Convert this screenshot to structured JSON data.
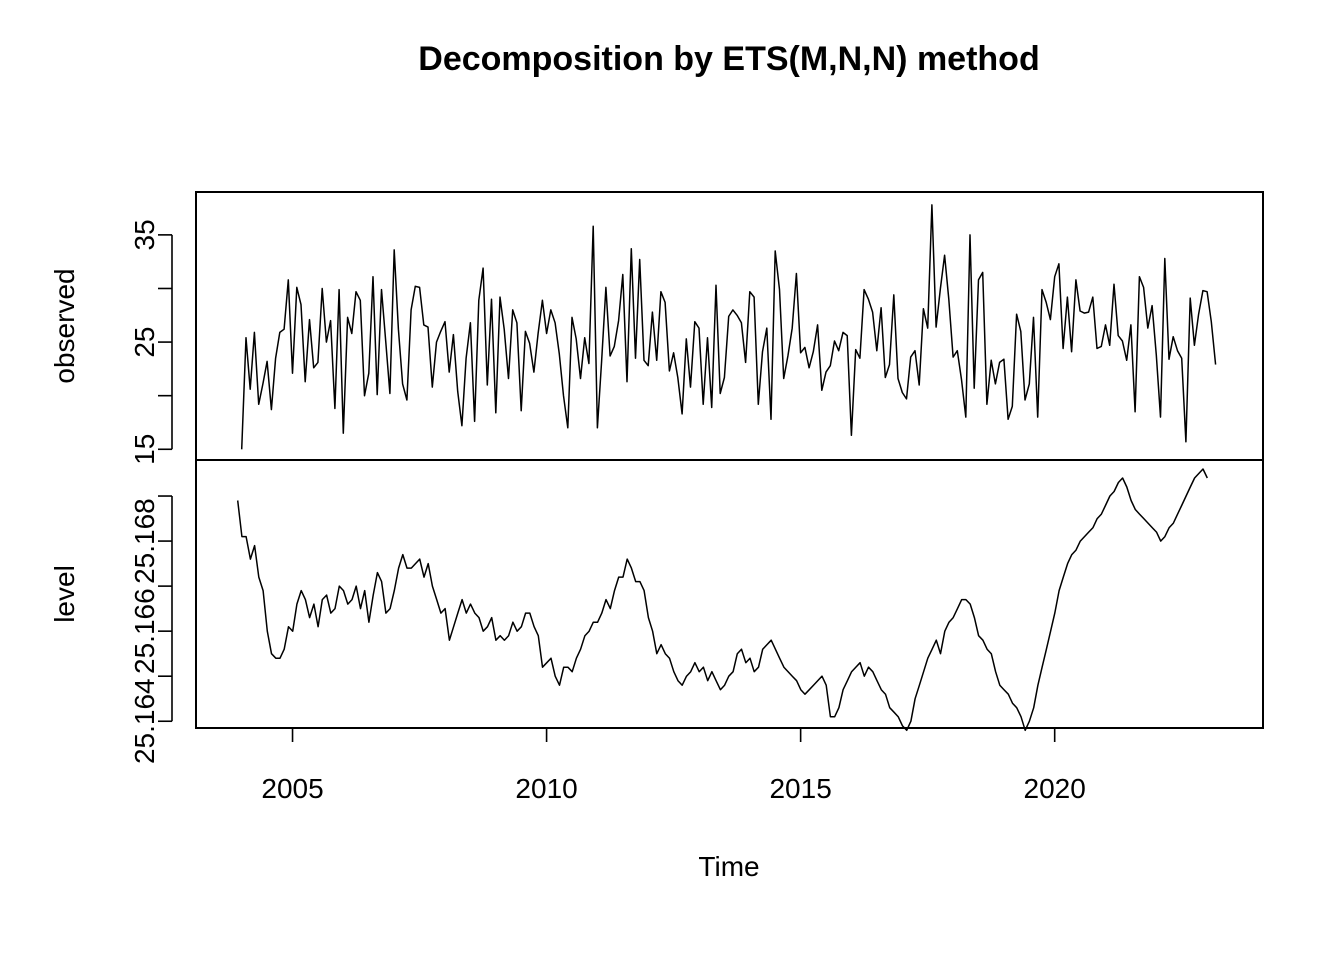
{
  "chart_data": {
    "type": "line",
    "title": "Decomposition by ETS(M,N,N) method",
    "xlabel": "Time",
    "xlim": [
      2003.1,
      2024.1
    ],
    "x_ticks": [
      {
        "value": 2005,
        "label": "2005"
      },
      {
        "value": 2010,
        "label": "2010"
      },
      {
        "value": 2015,
        "label": "2015"
      },
      {
        "value": 2020,
        "label": "2020"
      }
    ],
    "panels": [
      {
        "name": "observed",
        "ylabel": "observed",
        "ylim": [
          14,
          39
        ],
        "y_ticks": [
          {
            "value": 15,
            "label": "15"
          },
          {
            "value": 20,
            "label": ""
          },
          {
            "value": 25,
            "label": "25"
          },
          {
            "value": 30,
            "label": ""
          },
          {
            "value": 35,
            "label": "35"
          }
        ],
        "x_start": 2004.0,
        "x_step": 0.0833333,
        "values": [
          15.0,
          25.4,
          20.6,
          25.9,
          19.2,
          21.1,
          23.2,
          18.7,
          23.5,
          25.9,
          26.2,
          30.8,
          22.1,
          30.1,
          28.5,
          21.3,
          27.1,
          22.6,
          23.1,
          30.0,
          25.0,
          27.0,
          18.8,
          29.9,
          16.5,
          27.3,
          25.8,
          29.7,
          28.9,
          20.0,
          22.1,
          31.1,
          20.1,
          29.9,
          25.1,
          20.2,
          33.6,
          26.2,
          21.1,
          19.6,
          28.0,
          30.2,
          30.1,
          26.6,
          26.4,
          20.8,
          25.0,
          26.0,
          26.9,
          22.2,
          25.7,
          20.4,
          17.2,
          23.5,
          26.8,
          17.6,
          28.9,
          31.9,
          21.0,
          29.0,
          18.4,
          29.2,
          26.2,
          21.6,
          28.0,
          26.8,
          18.6,
          26.0,
          24.9,
          22.2,
          25.8,
          28.9,
          25.8,
          28.0,
          26.8,
          23.9,
          20.0,
          17.0,
          27.3,
          25.3,
          21.6,
          25.4,
          23.0,
          35.8,
          17.0,
          23.2,
          30.1,
          23.7,
          24.6,
          27.0,
          31.3,
          21.3,
          33.7,
          23.5,
          32.7,
          23.3,
          22.8,
          27.8,
          23.3,
          29.7,
          28.7,
          22.3,
          24.0,
          21.7,
          18.3,
          25.3,
          20.8,
          26.9,
          26.3,
          19.2,
          25.4,
          18.9,
          30.3,
          20.2,
          21.7,
          27.4,
          28.0,
          27.5,
          26.8,
          23.1,
          29.7,
          29.2,
          19.2,
          24.1,
          26.3,
          17.8,
          33.5,
          29.9,
          21.6,
          23.7,
          26.3,
          31.4,
          24.0,
          24.5,
          22.6,
          24.1,
          26.6,
          20.5,
          22.2,
          22.8,
          25.1,
          24.2,
          25.9,
          25.6,
          16.3,
          24.3,
          23.5,
          29.9,
          29.0,
          27.8,
          24.2,
          28.2,
          21.7,
          22.9,
          29.4,
          21.6,
          20.3,
          19.7,
          23.6,
          24.2,
          21.0,
          28.1,
          26.3,
          37.8,
          26.4,
          30.0,
          33.1,
          29.0,
          23.6,
          24.2,
          21.5,
          18.0,
          35.0,
          20.7,
          30.8,
          31.5,
          19.2,
          23.3,
          21.1,
          23.1,
          23.4,
          17.8,
          19.0,
          27.6,
          26.0,
          19.6,
          21.1,
          27.3,
          18.0,
          29.9,
          28.7,
          27.1,
          31.1,
          32.3,
          24.4,
          29.2,
          24.1,
          30.8,
          27.9,
          27.7,
          27.8,
          29.2,
          24.4,
          24.6,
          26.6,
          24.7,
          30.4,
          25.6,
          25.1,
          23.3,
          26.6,
          18.5,
          31.1,
          30.1,
          26.3,
          28.4,
          23.8,
          18.0,
          32.8,
          23.4,
          25.5,
          24.2,
          23.5,
          15.7,
          29.1,
          24.7,
          27.6,
          29.8,
          29.7,
          26.9,
          22.9
        ]
      },
      {
        "name": "level",
        "ylabel": "level",
        "ylim": [
          25.16385,
          25.1698
        ],
        "y_ticks": [
          {
            "value": 25.164,
            "label": "25.164"
          },
          {
            "value": 25.165,
            "label": ""
          },
          {
            "value": 25.166,
            "label": "25.166"
          },
          {
            "value": 25.167,
            "label": ""
          },
          {
            "value": 25.168,
            "label": "25.168"
          },
          {
            "value": 25.169,
            "label": ""
          }
        ],
        "x_start": 2003.92,
        "x_step": 0.0833333,
        "values": [
          25.1689,
          25.1681,
          25.1681,
          25.1676,
          25.1679,
          25.1672,
          25.1669,
          25.166,
          25.1655,
          25.1654,
          25.1654,
          25.1656,
          25.1661,
          25.166,
          25.1666,
          25.1669,
          25.1667,
          25.1663,
          25.1666,
          25.1661,
          25.1667,
          25.1668,
          25.1664,
          25.1665,
          25.167,
          25.1669,
          25.1666,
          25.1667,
          25.167,
          25.1665,
          25.1669,
          25.1662,
          25.1668,
          25.1673,
          25.1671,
          25.1664,
          25.1665,
          25.1669,
          25.1674,
          25.1677,
          25.1674,
          25.1674,
          25.1675,
          25.1676,
          25.1672,
          25.1675,
          25.167,
          25.1667,
          25.1664,
          25.1665,
          25.1658,
          25.1661,
          25.1664,
          25.1667,
          25.1664,
          25.1666,
          25.1664,
          25.1663,
          25.166,
          25.1661,
          25.1663,
          25.1658,
          25.1659,
          25.1658,
          25.1659,
          25.1662,
          25.166,
          25.1661,
          25.1664,
          25.1664,
          25.1661,
          25.1659,
          25.1652,
          25.1653,
          25.1654,
          25.165,
          25.1648,
          25.1652,
          25.1652,
          25.1651,
          25.1654,
          25.1656,
          25.1659,
          25.166,
          25.1662,
          25.1662,
          25.1664,
          25.1667,
          25.1665,
          25.1669,
          25.1672,
          25.1672,
          25.1676,
          25.1674,
          25.1671,
          25.1671,
          25.1669,
          25.1663,
          25.166,
          25.1655,
          25.1657,
          25.1655,
          25.1654,
          25.1651,
          25.1649,
          25.1648,
          25.165,
          25.1651,
          25.1653,
          25.1651,
          25.1652,
          25.1649,
          25.1651,
          25.1649,
          25.1647,
          25.1648,
          25.165,
          25.1651,
          25.1655,
          25.1656,
          25.1653,
          25.1654,
          25.1651,
          25.1652,
          25.1656,
          25.1657,
          25.1658,
          25.1656,
          25.1654,
          25.1652,
          25.1651,
          25.165,
          25.1649,
          25.1647,
          25.1646,
          25.1647,
          25.1648,
          25.1649,
          25.165,
          25.1648,
          25.1641,
          25.1641,
          25.1643,
          25.1647,
          25.1649,
          25.1651,
          25.1652,
          25.1653,
          25.165,
          25.1652,
          25.1651,
          25.1649,
          25.1647,
          25.1646,
          25.1643,
          25.1642,
          25.1641,
          25.1639,
          25.1638,
          25.164,
          25.1645,
          25.1648,
          25.1651,
          25.1654,
          25.1656,
          25.1658,
          25.1655,
          25.166,
          25.1662,
          25.1663,
          25.1665,
          25.1667,
          25.1667,
          25.1666,
          25.1663,
          25.1659,
          25.1658,
          25.1656,
          25.1655,
          25.1651,
          25.1648,
          25.1647,
          25.1646,
          25.1644,
          25.1643,
          25.1641,
          25.1638,
          25.164,
          25.1643,
          25.1648,
          25.1652,
          25.1656,
          25.166,
          25.1664,
          25.1669,
          25.1672,
          25.1675,
          25.1677,
          25.1678,
          25.168,
          25.1681,
          25.1682,
          25.1683,
          25.1685,
          25.1686,
          25.1688,
          25.169,
          25.1691,
          25.1693,
          25.1694,
          25.1692,
          25.1689,
          25.1687,
          25.1686,
          25.1685,
          25.1684,
          25.1683,
          25.1682,
          25.168,
          25.1681,
          25.1683,
          25.1684,
          25.1686,
          25.1688,
          25.169,
          25.1692,
          25.1694,
          25.1695,
          25.1696,
          25.1694
        ]
      }
    ]
  }
}
